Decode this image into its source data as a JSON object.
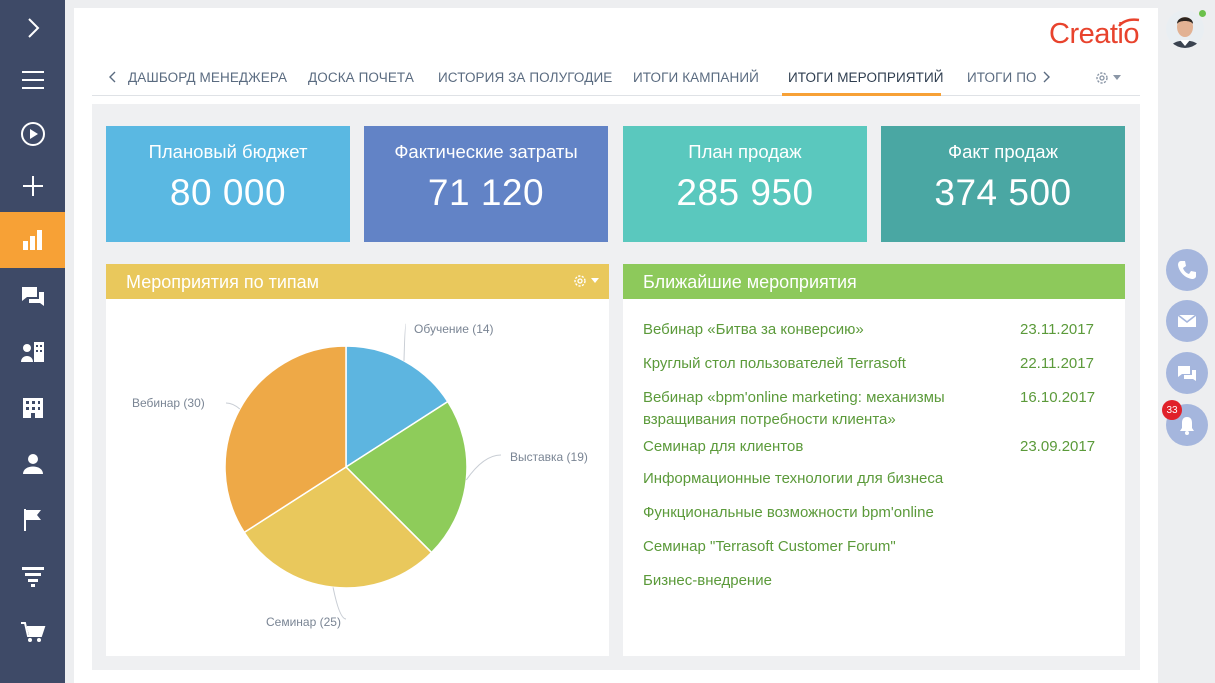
{
  "header": {
    "logo": "Creatio",
    "tabs": [
      {
        "label": "ДАШБОРД МЕНЕДЖЕРА"
      },
      {
        "label": "ДОСКА ПОЧЕТА"
      },
      {
        "label": "ИСТОРИЯ ЗА ПОЛУГОДИЕ"
      },
      {
        "label": "ИТОГИ КАМПАНИЙ"
      },
      {
        "label": "ИТОГИ МЕРОПРИЯТИЙ",
        "active": true
      },
      {
        "label": "ИТОГИ ПО"
      }
    ]
  },
  "kpis": [
    {
      "title": "Плановый бюджет",
      "value": "80 000",
      "color": "#5ab8e2"
    },
    {
      "title": "Фактические затраты",
      "value": "71 120",
      "color": "#6283c6"
    },
    {
      "title": "План продаж",
      "value": "285 950",
      "color": "#5ac8be"
    },
    {
      "title": "Факт продаж",
      "value": "374 500",
      "color": "#4aa7a3"
    }
  ],
  "events_by_type": {
    "title": "Мероприятия по типам",
    "header_color": "#e9c85c",
    "labels": [
      "Обучение (14)",
      "Выставка (19)",
      "Семинар (25)",
      "Вебинар (30)"
    ]
  },
  "chart_data": {
    "type": "pie",
    "title": "Мероприятия по типам",
    "categories": [
      "Обучение",
      "Выставка",
      "Семинар",
      "Вебинар"
    ],
    "values": [
      14,
      19,
      25,
      30
    ],
    "colors": [
      "#5db5e0",
      "#8ecc5a",
      "#e9c85c",
      "#eea947"
    ]
  },
  "upcoming": {
    "title": "Ближайшие мероприятия",
    "header_color": "#8dc95b",
    "items": [
      {
        "name": "Вебинар «Битва за конверсию»",
        "date": "23.11.2017"
      },
      {
        "name": "Круглый стол пользователей Terrasoft",
        "date": "22.11.2017"
      },
      {
        "name": "Вебинар «bpm'online marketing: механизмы",
        "name2": "взращивания потребности клиента»",
        "date": "16.10.2017"
      },
      {
        "name": "Семинар для клиентов",
        "date": "23.09.2017"
      },
      {
        "name": "Информационные технологии для бизнеса",
        "date": ""
      },
      {
        "name": "Функциональные возможности bpm'online",
        "date": ""
      },
      {
        "name": "Семинар \"Terrasoft Customer Forum\"",
        "date": ""
      },
      {
        "name": "Бизнес-внедрение",
        "date": ""
      }
    ]
  },
  "rail": {
    "notifications_count": "33"
  },
  "icons": [
    "chevron-right-icon",
    "menu-icon",
    "play-icon",
    "plus-icon",
    "chart-icon",
    "chat-icon",
    "contacts-icon",
    "building-icon",
    "user-icon",
    "flag-icon",
    "funnel-icon",
    "cart-icon",
    "gear-icon",
    "phone-icon",
    "mail-icon",
    "message-icon",
    "bell-icon"
  ]
}
